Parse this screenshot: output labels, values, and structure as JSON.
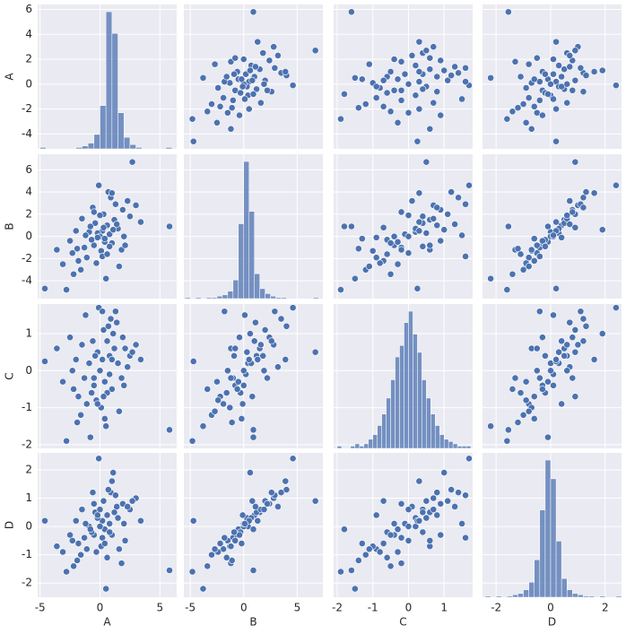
{
  "chart_data": {
    "type": "pairplot",
    "color": "#4c72b0",
    "panel_color": "#eaeaf2",
    "grid": true,
    "variables": [
      {
        "name": "A",
        "lim": [
          -5.2,
          6.4
        ],
        "xticks": [
          -5,
          0,
          5
        ],
        "yticks": [
          -4,
          -2,
          0,
          2,
          4,
          6
        ],
        "values": [
          0.2,
          -0.5,
          1.2,
          -1.3,
          0.8,
          -0.2,
          1.9,
          -1.8,
          0.4,
          -0.9,
          2.5,
          -2.3,
          0.0,
          0.6,
          -0.7,
          1.5,
          -1.1,
          0.3,
          3.0,
          -3.1,
          1.0,
          -0.4,
          0.9,
          -2.0,
          2.0,
          -1.6,
          0.1,
          1.3,
          -0.3,
          0.7,
          5.8,
          2.7,
          -4.6,
          -2.8,
          0.5,
          1.8,
          -0.1,
          0.2,
          -0.8,
          1.1,
          -1.5,
          2.3,
          -2.5,
          0.4,
          -0.6,
          1.6,
          -1.9,
          0.0,
          3.4,
          -3.6,
          0.8,
          -0.2,
          1.4,
          -1.2,
          0.6,
          -0.5,
          2.1,
          -2.2,
          0.3,
          1.0
        ],
        "hist": {
          "bins": [
            -5,
            -4.5,
            -4,
            -3.5,
            -3,
            -2.5,
            -2,
            -1.5,
            -1,
            -0.5,
            0,
            0.5,
            1,
            1.5,
            2,
            2.5,
            3,
            3.5,
            4,
            4.5,
            5,
            5.5,
            6
          ],
          "counts": [
            1,
            0,
            0,
            0,
            0,
            0,
            1,
            2,
            4,
            10,
            30,
            95,
            80,
            25,
            8,
            3,
            1,
            0,
            0,
            0,
            0,
            1
          ]
        }
      },
      {
        "name": "B",
        "lim": [
          -5.6,
          7.4
        ],
        "xticks": [
          -5,
          0,
          5
        ],
        "yticks": [
          -4,
          -2,
          0,
          2,
          4,
          6
        ],
        "values": [
          0.5,
          -0.8,
          1.5,
          -1.0,
          0.2,
          0.3,
          2.4,
          -2.2,
          -0.5,
          0.4,
          1.8,
          -1.5,
          0.0,
          1.0,
          -0.3,
          0.7,
          -1.9,
          2.0,
          2.8,
          -2.5,
          -0.6,
          1.2,
          3.5,
          0.5,
          0.0,
          -3.0,
          -1.3,
          2.9,
          -2.4,
          4.0,
          0.9,
          6.7,
          -4.7,
          -4.8,
          -3.8,
          -1.2,
          4.6,
          -1.8,
          0.9,
          0.6,
          1.6,
          3.2,
          -0.4,
          -0.2,
          2.6,
          -2.7,
          -1.1,
          1.9,
          1.3,
          -1.2,
          -0.9,
          -0.1,
          1.1,
          0.1,
          -1.6,
          2.2,
          -0.8,
          -3.4,
          0.8,
          3.9
        ],
        "hist": {
          "bins": [
            -5.5,
            -5,
            -4.5,
            -4,
            -3.5,
            -3,
            -2.5,
            -2,
            -1.5,
            -1,
            -0.5,
            0,
            0.5,
            1,
            1.5,
            2,
            2.5,
            3,
            3.5,
            4,
            4.5,
            5,
            5.5,
            6,
            6.5,
            7
          ],
          "counts": [
            1,
            0,
            1,
            0,
            1,
            1,
            2,
            3,
            6,
            15,
            60,
            110,
            70,
            20,
            8,
            4,
            2,
            1,
            1,
            0,
            0,
            0,
            0,
            0,
            1
          ]
        }
      },
      {
        "name": "C",
        "lim": [
          -2.1,
          1.8
        ],
        "xticks": [
          -2,
          -1,
          0,
          1
        ],
        "yticks": [
          -2,
          -1,
          0,
          1
        ],
        "values": [
          0.3,
          -0.4,
          0.6,
          -0.2,
          -0.1,
          0.5,
          0.9,
          -0.7,
          -0.3,
          0.2,
          0.4,
          0.0,
          0.0,
          0.8,
          -0.6,
          0.2,
          -0.9,
          1.1,
          0.7,
          -0.3,
          -0.5,
          0.4,
          1.4,
          0.3,
          -0.4,
          -1.2,
          -1.0,
          1.6,
          -0.8,
          1.2,
          -1.6,
          0.5,
          0.25,
          -1.9,
          -1.5,
          -0.2,
          1.7,
          1.6,
          -1.8,
          1.0,
          0.7,
          0.1,
          0.9,
          -1.3,
          0.8,
          -1.1,
          -1.4,
          0.0,
          0.3,
          0.6,
          0.4,
          -0.9,
          1.3,
          1.5,
          -0.6,
          -0.2,
          0.6,
          -0.5,
          -0.7,
          0.3
        ],
        "hist": {
          "bins": [
            -2,
            -1.875,
            -1.75,
            -1.625,
            -1.5,
            -1.375,
            -1.25,
            -1.125,
            -1,
            -0.875,
            -0.75,
            -0.625,
            -0.5,
            -0.375,
            -0.25,
            -0.125,
            0,
            0.125,
            0.25,
            0.375,
            0.5,
            0.625,
            0.75,
            0.875,
            1,
            1.125,
            1.25,
            1.375,
            1.5,
            1.625,
            1.75
          ],
          "counts": [
            1,
            0,
            0,
            1,
            2,
            1,
            2,
            4,
            6,
            10,
            15,
            22,
            30,
            40,
            45,
            55,
            60,
            50,
            42,
            30,
            22,
            15,
            10,
            6,
            4,
            3,
            2,
            1,
            1,
            1
          ]
        }
      },
      {
        "name": "D",
        "lim": [
          -2.5,
          2.6
        ],
        "xticks": [
          -2,
          0,
          2
        ],
        "yticks": [
          -2,
          -1,
          0,
          1,
          2
        ],
        "values": [
          0.2,
          -0.3,
          0.5,
          -0.4,
          0.1,
          0.3,
          0.8,
          -0.6,
          -0.1,
          0.0,
          0.6,
          -0.5,
          0.0,
          0.4,
          -0.2,
          0.3,
          -0.8,
          0.9,
          1.0,
          -0.9,
          -0.3,
          0.5,
          1.2,
          0.2,
          0.1,
          -1.0,
          -0.7,
          1.1,
          -0.9,
          1.3,
          -1.55,
          0.9,
          0.2,
          -1.6,
          -2.2,
          -1.3,
          2.4,
          -0.4,
          -0.1,
          1.9,
          0.6,
          0.7,
          -0.3,
          -0.6,
          1.2,
          -0.8,
          -1.2,
          0.6,
          0.2,
          -0.7,
          -0.2,
          0.4,
          0.7,
          0.1,
          -1.1,
          0.8,
          -0.5,
          -1.4,
          0.9,
          1.6
        ],
        "hist": {
          "bins": [
            -2.4,
            -2.2,
            -2,
            -1.8,
            -1.6,
            -1.4,
            -1.2,
            -1,
            -0.8,
            -0.6,
            -0.4,
            -0.2,
            0,
            0.2,
            0.4,
            0.6,
            0.8,
            1,
            1.2,
            1.4,
            1.6,
            1.8,
            2,
            2.2,
            2.4,
            2.6
          ],
          "counts": [
            1,
            0,
            1,
            0,
            1,
            2,
            3,
            6,
            12,
            30,
            70,
            110,
            95,
            45,
            15,
            6,
            3,
            2,
            1,
            1,
            0,
            1,
            0,
            0,
            1
          ]
        }
      }
    ]
  }
}
